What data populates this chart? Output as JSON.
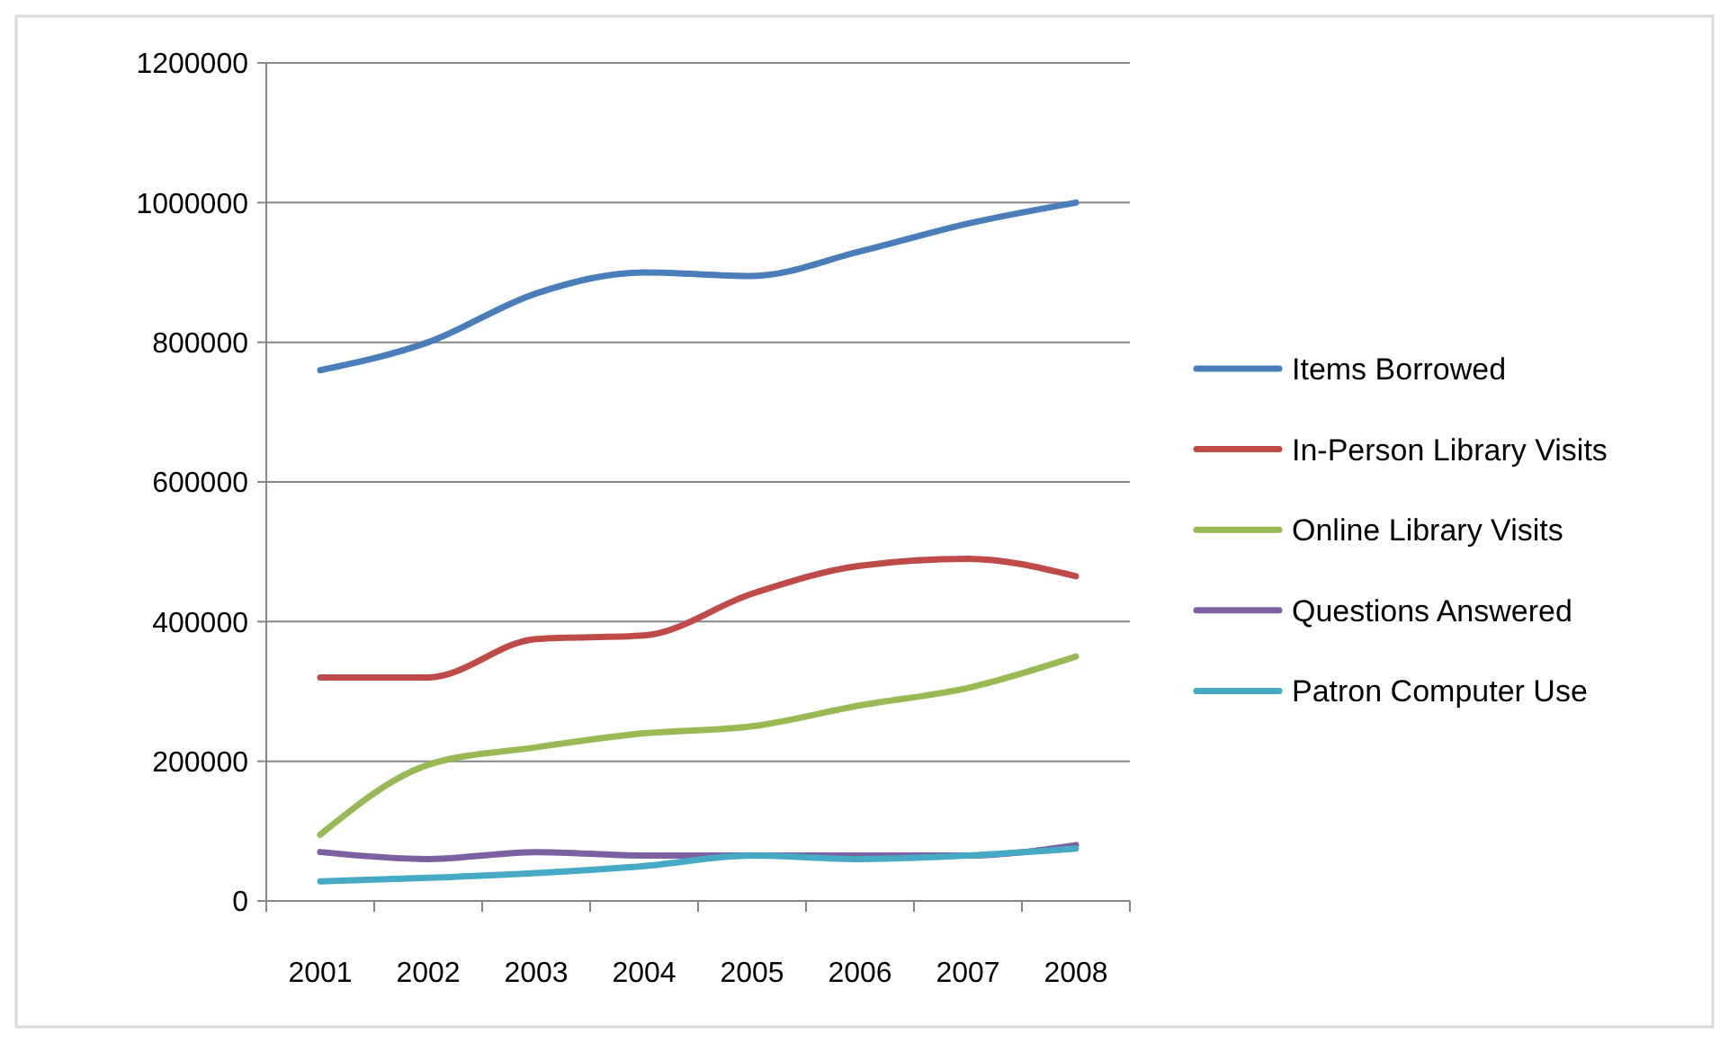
{
  "chart_data": {
    "type": "line",
    "categories": [
      "2001",
      "2002",
      "2003",
      "2004",
      "2005",
      "2006",
      "2007",
      "2008"
    ],
    "series": [
      {
        "name": "Items Borrowed",
        "color": "#4a7ebb",
        "values": [
          760000,
          800000,
          870000,
          900000,
          895000,
          930000,
          970000,
          1000000
        ]
      },
      {
        "name": "In-Person Library Visits",
        "color": "#be4b48",
        "values": [
          320000,
          320000,
          375000,
          380000,
          440000,
          480000,
          490000,
          465000
        ]
      },
      {
        "name": "Online Library Visits",
        "color": "#98b954",
        "values": [
          95000,
          195000,
          220000,
          240000,
          250000,
          280000,
          305000,
          350000
        ]
      },
      {
        "name": "Questions Answered",
        "color": "#7d60a0",
        "values": [
          70000,
          60000,
          70000,
          65000,
          65000,
          65000,
          65000,
          80000
        ]
      },
      {
        "name": "Patron Computer Use",
        "color": "#46aac5",
        "values": [
          28000,
          33000,
          40000,
          50000,
          65000,
          60000,
          65000,
          75000
        ]
      }
    ],
    "ylim": [
      0,
      1200000
    ],
    "yticks": [
      0,
      200000,
      400000,
      600000,
      800000,
      1000000,
      1200000
    ],
    "grid": "y",
    "legend": "right",
    "marker": "none",
    "line_style": "solid"
  }
}
